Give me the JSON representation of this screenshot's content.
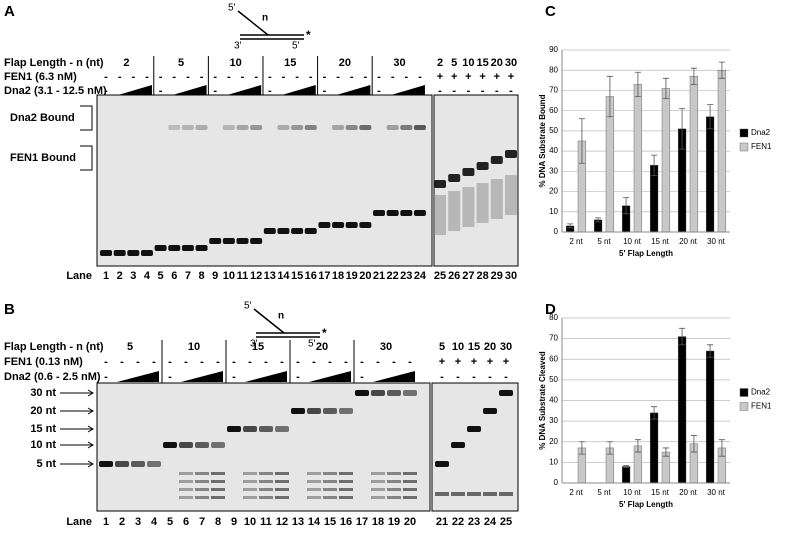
{
  "gels": [
    {
      "panel": "A",
      "diagram": {
        "top_end": "5′",
        "flap": "n",
        "left_end": "3′",
        "right_end": "5′",
        "label_mark": "*"
      },
      "row_labels": [
        "Flap Length - n (nt)",
        "FEN1 (6.3 nM)",
        "Dna2 (3.1 - 12.5 nM)"
      ],
      "flap_groups": [
        2,
        5,
        10,
        15,
        20,
        30
      ],
      "flap_lanes": [
        2,
        5,
        10,
        15,
        20,
        30
      ],
      "fen1": [
        "-",
        "-",
        "-",
        "-",
        "-",
        "-",
        "-",
        "-",
        "-",
        "-",
        "-",
        "-",
        "-",
        "-",
        "-",
        "-",
        "-",
        "-",
        "-",
        "-",
        "-",
        "-",
        "-",
        "-",
        "+",
        "+",
        "+",
        "+",
        "+",
        "+"
      ],
      "dna2": [
        "-",
        null,
        null,
        null,
        "-",
        null,
        null,
        null,
        "-",
        null,
        null,
        null,
        "-",
        null,
        null,
        null,
        "-",
        null,
        null,
        null,
        "-",
        null,
        null,
        null,
        "-",
        "-",
        "-",
        "-",
        "-",
        "-"
      ],
      "side_labels": [
        "Dna2 Bound",
        "FEN1 Bound"
      ],
      "lane_title": "Lane",
      "lanes": [
        1,
        2,
        3,
        4,
        5,
        6,
        7,
        8,
        9,
        10,
        11,
        12,
        13,
        14,
        15,
        16,
        17,
        18,
        19,
        20,
        21,
        22,
        23,
        24,
        25,
        26,
        27,
        28,
        29,
        30
      ]
    },
    {
      "panel": "B",
      "diagram": {
        "top_end": "5′",
        "flap": "n",
        "left_end": "3′",
        "right_end": "5′",
        "label_mark": "*"
      },
      "row_labels": [
        "Flap Length - n (nt)",
        "FEN1 (0.13 nM)",
        "Dna2 (0.6 - 2.5 nM)"
      ],
      "flap_groups": [
        5,
        10,
        15,
        20,
        30
      ],
      "flap_lanes": [
        5,
        10,
        15,
        20,
        30
      ],
      "fen1": [
        "-",
        "-",
        "-",
        "-",
        "-",
        "-",
        "-",
        "-",
        "-",
        "-",
        "-",
        "-",
        "-",
        "-",
        "-",
        "-",
        "-",
        "-",
        "-",
        "-",
        "+",
        "+",
        "+",
        "+",
        "+"
      ],
      "dna2": [
        "-",
        null,
        null,
        null,
        "-",
        null,
        null,
        null,
        "-",
        null,
        null,
        null,
        "-",
        null,
        null,
        null,
        "-",
        null,
        null,
        null,
        "-",
        "-",
        "-",
        "-",
        "-"
      ],
      "size_markers": [
        "30 nt",
        "20 nt",
        "15 nt",
        "10 nt",
        "5 nt"
      ],
      "lane_title": "Lane",
      "lanes": [
        1,
        2,
        3,
        4,
        5,
        6,
        7,
        8,
        9,
        10,
        11,
        12,
        13,
        14,
        15,
        16,
        17,
        18,
        19,
        20,
        21,
        22,
        23,
        24,
        25
      ]
    }
  ],
  "chart_data": [
    {
      "type": "bar",
      "panel": "C",
      "y_label": "% DNA Substrate Bound",
      "x_label": "5' Flap Length",
      "categories": [
        "2 nt",
        "5 nt",
        "10 nt",
        "15 nt",
        "20 nt",
        "30 nt"
      ],
      "series": [
        {
          "name": "Dna2",
          "color": "#000000",
          "values": [
            3,
            6,
            13,
            33,
            51,
            57
          ],
          "errors": [
            1,
            1,
            4,
            5,
            10,
            6
          ]
        },
        {
          "name": "FEN1",
          "color": "#c8c8c8",
          "values": [
            45,
            67,
            73,
            71,
            77,
            80
          ],
          "errors": [
            11,
            10,
            6,
            5,
            4,
            4
          ]
        }
      ],
      "ylim": [
        0,
        90
      ],
      "yticks": [
        0,
        10,
        20,
        30,
        40,
        50,
        60,
        70,
        80,
        90
      ],
      "grid": true,
      "legend": "right"
    },
    {
      "type": "bar",
      "panel": "D",
      "y_label": "% DNA Substrate Cleaved",
      "x_label": "5' Flap Length",
      "categories": [
        "2 nt",
        "5 nt",
        "10 nt",
        "15 nt",
        "20 nt",
        "30 nt"
      ],
      "series": [
        {
          "name": "Dna2",
          "color": "#000000",
          "values": [
            0,
            0,
            8,
            34,
            71,
            64
          ],
          "errors": [
            0,
            0,
            0.5,
            3,
            4,
            3
          ]
        },
        {
          "name": "FEN1",
          "color": "#c8c8c8",
          "values": [
            17,
            17,
            18,
            15,
            19,
            17
          ],
          "errors": [
            3,
            3,
            3,
            2,
            4,
            4
          ]
        }
      ],
      "ylim": [
        0,
        80
      ],
      "yticks": [
        0,
        10,
        20,
        30,
        40,
        50,
        60,
        70,
        80
      ],
      "grid": true,
      "legend": "right"
    }
  ]
}
